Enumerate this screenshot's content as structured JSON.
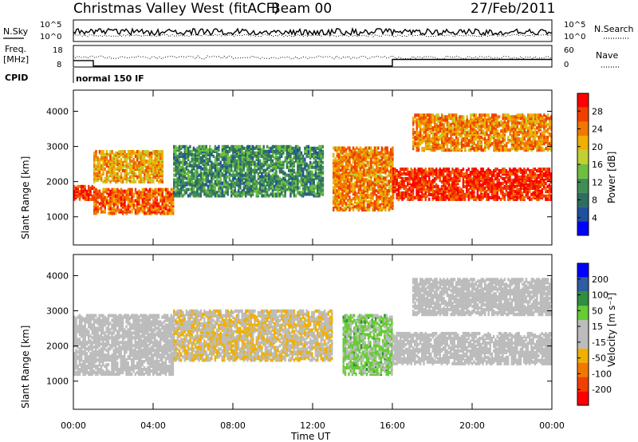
{
  "header": {
    "station": "Christmas Valley West (fitACF)",
    "beam": "Beam 00",
    "date": "27/Feb/2011"
  },
  "panels": {
    "nsky_label": "N.Sky",
    "nsearch_label": "N.Search",
    "nsky_ticks": [
      "10^5",
      "10^0"
    ],
    "nsearch_ticks": [
      "10^5",
      "10^0"
    ],
    "freq_label": "Freq.",
    "freq_unit": "[MHz]",
    "freq_ticks": [
      "18",
      "8"
    ],
    "nave_label": "Nave",
    "nave_ticks": [
      "60",
      "0"
    ],
    "cpid_label": "CPID",
    "cpid_value": "normal 150 IF"
  },
  "colors": {
    "power": [
      "#0000ff",
      "#2050a0",
      "#2e6e60",
      "#3f8f55",
      "#6fbf3f",
      "#c0d030",
      "#f0b000",
      "#f07800",
      "#f04000",
      "#ff0000"
    ],
    "velocity": [
      "#ff0000",
      "#f04000",
      "#f07800",
      "#f0b000",
      "#bcbcbc",
      "#bcbcbc",
      "#66cc33",
      "#2f8f3f",
      "#2e5ea0",
      "#0000ff"
    ]
  },
  "chart_data": [
    {
      "type": "heatmap",
      "name": "power",
      "ylabel": "Slant Range [km]",
      "yticks": [
        "1000",
        "2000",
        "3000",
        "4000"
      ],
      "ylim": [
        200,
        4600
      ],
      "xlim": [
        "00:00",
        "24:00"
      ],
      "colorbar_label": "Power [dB]",
      "colorbar_ticks": [
        "4",
        "8",
        "12",
        "16",
        "20",
        "24",
        "28"
      ],
      "colorbar_range": [
        0,
        30
      ],
      "echo_bands": [
        {
          "from": "00:00",
          "to": "01:00",
          "range_km": [
            1500,
            1900
          ],
          "power_db": 26
        },
        {
          "from": "01:00",
          "to": "05:00",
          "range_km": [
            1100,
            1800
          ],
          "power_db": 24
        },
        {
          "from": "01:00",
          "to": "04:30",
          "range_km": [
            2000,
            2900
          ],
          "power_db": 20
        },
        {
          "from": "05:00",
          "to": "12:30",
          "range_km": [
            1600,
            3000
          ],
          "power_db": 10
        },
        {
          "from": "13:00",
          "to": "16:00",
          "range_km": [
            1200,
            3000
          ],
          "power_db": 22
        },
        {
          "from": "16:00",
          "to": "24:00",
          "range_km": [
            1500,
            2400
          ],
          "power_db": 27
        },
        {
          "from": "17:00",
          "to": "24:00",
          "range_km": [
            2900,
            3900
          ],
          "power_db": 22
        }
      ]
    },
    {
      "type": "heatmap",
      "name": "velocity",
      "ylabel": "Slant Range [km]",
      "yticks": [
        "1000",
        "2000",
        "3000",
        "4000"
      ],
      "ylim": [
        200,
        4600
      ],
      "xlim": [
        "00:00",
        "24:00"
      ],
      "xlabel": "Time UT",
      "xticks": [
        "00:00",
        "04:00",
        "08:00",
        "12:00",
        "16:00",
        "20:00",
        "00:00"
      ],
      "colorbar_label": "Velocity [m s⁻¹]",
      "colorbar_ticks": [
        "200",
        "100",
        "50",
        "15",
        "-15",
        "-50",
        "-100",
        "-200"
      ],
      "colorbar_range": [
        -250,
        250
      ],
      "echo_bands": [
        {
          "from": "00:00",
          "to": "05:00",
          "range_km": [
            1200,
            2900
          ],
          "velocity_ms": 0
        },
        {
          "from": "05:00",
          "to": "13:00",
          "range_km": [
            1600,
            3000
          ],
          "velocity_ms": -40
        },
        {
          "from": "13:30",
          "to": "16:00",
          "range_km": [
            1200,
            2900
          ],
          "velocity_ms": 60
        },
        {
          "from": "16:00",
          "to": "24:00",
          "range_km": [
            1500,
            2400
          ],
          "velocity_ms": 0
        },
        {
          "from": "17:00",
          "to": "24:00",
          "range_km": [
            2900,
            3900
          ],
          "velocity_ms": 0
        }
      ]
    }
  ]
}
